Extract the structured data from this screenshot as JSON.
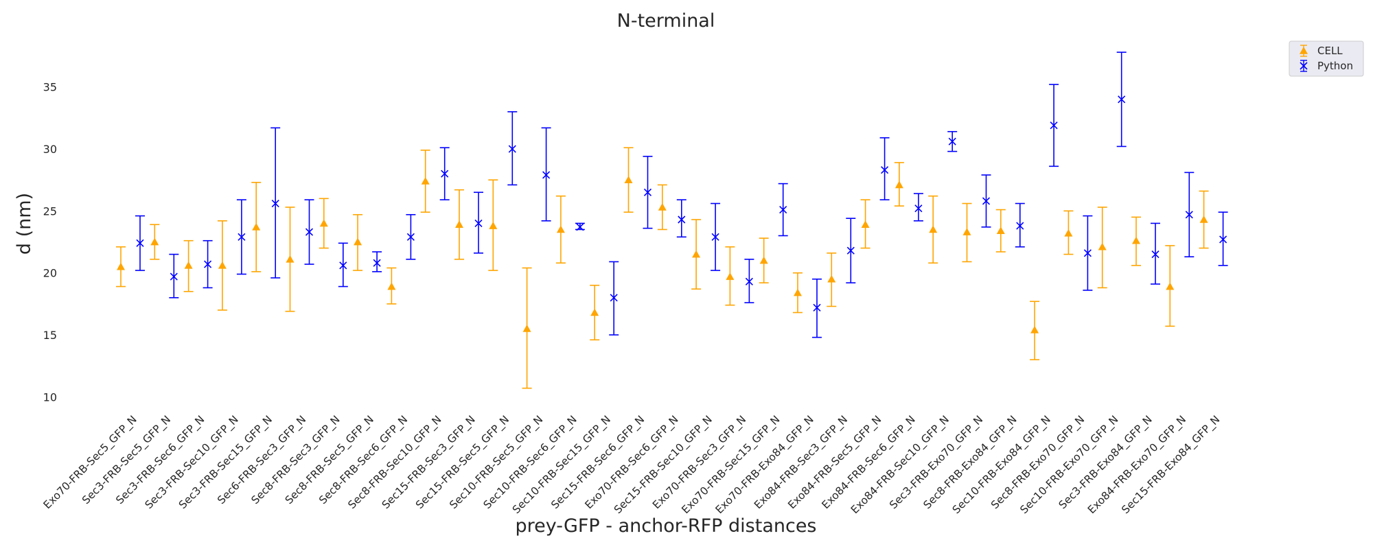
{
  "chart_data": {
    "type": "scatter",
    "title": "N-terminal",
    "xlabel": "prey-GFP - anchor-RFP distances",
    "ylabel": "d (nm)",
    "ylim": [
      8.8,
      39.8
    ],
    "yticks": [
      10,
      15,
      20,
      25,
      30,
      35
    ],
    "grid": false,
    "legend_position": "top-right",
    "categories": [
      "Exo70-FRB-Sec5_GFP_N",
      "Sec3-FRB-Sec5_GFP_N",
      "Sec3-FRB-Sec6_GFP_N",
      "Sec3-FRB-Sec10_GFP_N",
      "Sec3-FRB-Sec15_GFP_N",
      "Sec6-FRB-Sec3_GFP_N",
      "Sec8-FRB-Sec3_GFP_N",
      "Sec8-FRB-Sec5_GFP_N",
      "Sec8-FRB-Sec6_GFP_N",
      "Sec8-FRB-Sec10_GFP_N",
      "Sec15-FRB-Sec3_GFP_N",
      "Sec15-FRB-Sec5_GFP_N",
      "Sec10-FRB-Sec5_GFP_N",
      "Sec10-FRB-Sec6_GFP_N",
      "Sec10-FRB-Sec15_GFP_N",
      "Sec15-FRB-Sec6_GFP_N",
      "Exo70-FRB-Sec6_GFP_N",
      "Sec15-FRB-Sec10_GFP_N",
      "Exo70-FRB-Sec3_GFP_N",
      "Exo70-FRB-Sec15_GFP_N",
      "Exo70-FRB-Exo84_GFP_N",
      "Exo84-FRB-Sec3_GFP_N",
      "Exo84-FRB-Sec5_GFP_N",
      "Exo84-FRB-Sec6_GFP_N",
      "Exo84-FRB-Sec10_GFP_N",
      "Sec3-FRB-Exo70_GFP_N",
      "Sec8-FRB-Exo84_GFP_N",
      "Sec10-FRB-Exo84_GFP_N",
      "Sec8-FRB-Exo70_GFP_N",
      "Sec10-FRB-Exo70_GFP_N",
      "Sec3-FRB-Exo84_GFP_N",
      "Exo84-FRB-Exo70_GFP_N",
      "Sec15-FRB-Exo84_GFP_N"
    ],
    "series": [
      {
        "name": "CELL",
        "color": "#ffa500",
        "marker": "triangle",
        "values": [
          20.5,
          22.5,
          20.6,
          20.6,
          23.7,
          21.1,
          24.0,
          22.5,
          18.9,
          27.4,
          23.9,
          23.8,
          15.5,
          23.5,
          16.8,
          27.5,
          25.3,
          21.5,
          19.7,
          21.0,
          18.4,
          19.5,
          23.9,
          27.1,
          23.5,
          23.3,
          23.4,
          15.4,
          23.2,
          22.1,
          22.6,
          18.9,
          24.3
        ],
        "lower": [
          18.9,
          21.1,
          18.5,
          17.0,
          20.1,
          16.9,
          22.0,
          20.2,
          17.5,
          24.9,
          21.1,
          20.2,
          10.7,
          20.8,
          14.6,
          24.9,
          23.5,
          18.7,
          17.4,
          19.2,
          16.8,
          17.3,
          22.0,
          25.4,
          20.8,
          20.9,
          21.7,
          13.0,
          21.5,
          18.8,
          20.6,
          15.7,
          22.0
        ],
        "upper": [
          22.1,
          23.9,
          22.6,
          24.2,
          27.3,
          25.3,
          26.0,
          24.7,
          20.4,
          29.9,
          26.7,
          27.5,
          20.4,
          26.2,
          19.0,
          30.1,
          27.1,
          24.3,
          22.1,
          22.8,
          20.0,
          21.6,
          25.9,
          28.9,
          26.2,
          25.6,
          25.1,
          17.7,
          25.0,
          25.3,
          24.5,
          22.2,
          26.6
        ]
      },
      {
        "name": "Python",
        "color": "#0000ff",
        "marker": "x",
        "values": [
          22.4,
          19.7,
          20.7,
          22.9,
          25.6,
          23.3,
          20.6,
          20.8,
          22.9,
          28.0,
          24.0,
          30.0,
          27.9,
          23.7,
          18.0,
          26.5,
          24.3,
          22.9,
          19.3,
          25.1,
          17.2,
          21.8,
          28.3,
          25.2,
          30.6,
          25.8,
          23.8,
          31.9,
          21.6,
          34.0,
          21.5,
          24.7,
          22.7
        ],
        "lower": [
          20.2,
          18.0,
          18.8,
          19.9,
          19.6,
          20.7,
          18.9,
          20.1,
          21.1,
          25.9,
          21.6,
          27.1,
          24.2,
          23.5,
          15.0,
          23.6,
          22.9,
          20.2,
          17.6,
          23.0,
          14.8,
          19.2,
          25.9,
          24.2,
          29.8,
          23.7,
          22.1,
          28.6,
          18.6,
          30.2,
          19.1,
          21.3,
          20.6
        ],
        "upper": [
          24.6,
          21.5,
          22.6,
          25.9,
          31.7,
          25.9,
          22.4,
          21.7,
          24.7,
          30.1,
          26.5,
          33.0,
          31.7,
          24.0,
          20.9,
          29.4,
          25.9,
          25.6,
          21.1,
          27.2,
          19.5,
          24.4,
          30.9,
          26.4,
          31.4,
          27.9,
          25.6,
          35.2,
          24.6,
          37.8,
          24.0,
          28.1,
          24.9
        ]
      }
    ]
  }
}
